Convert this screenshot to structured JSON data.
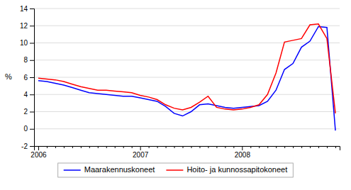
{
  "chart_data": {
    "type": "line",
    "categories": [
      "2006",
      null,
      null,
      null,
      null,
      null,
      null,
      null,
      null,
      null,
      null,
      null,
      "2007",
      null,
      null,
      null,
      null,
      null,
      null,
      null,
      null,
      null,
      null,
      null,
      "2008",
      null,
      null,
      null,
      null,
      null,
      null,
      null,
      null,
      null,
      null,
      null
    ],
    "series": [
      {
        "name": "Maarakennuskoneet",
        "color": "#0000FF",
        "values": [
          5.6,
          5.5,
          5.3,
          5.1,
          4.8,
          4.5,
          4.2,
          4.1,
          4.0,
          3.9,
          3.8,
          3.8,
          3.6,
          3.4,
          3.2,
          2.6,
          1.8,
          1.5,
          2.0,
          2.8,
          2.9,
          2.7,
          2.5,
          2.4,
          2.5,
          2.6,
          2.7,
          3.2,
          4.5,
          6.9,
          7.6,
          9.5,
          10.2,
          11.9,
          11.8,
          -0.2
        ]
      },
      {
        "name": "Hoito- ja kunnossapitokoneet",
        "color": "#FF0000",
        "values": [
          5.9,
          5.8,
          5.7,
          5.5,
          5.2,
          4.9,
          4.7,
          4.5,
          4.5,
          4.4,
          4.3,
          4.2,
          3.9,
          3.7,
          3.4,
          2.8,
          2.4,
          2.2,
          2.5,
          3.1,
          3.8,
          2.5,
          2.3,
          2.2,
          2.3,
          2.5,
          2.8,
          4.0,
          6.5,
          10.1,
          10.3,
          10.5,
          12.1,
          12.2,
          10.5,
          1.8
        ]
      }
    ],
    "ylabel": "%",
    "ylim": [
      -2,
      14
    ],
    "yticks": [
      -2,
      0,
      2,
      4,
      6,
      8,
      10,
      12,
      14
    ],
    "grid": true,
    "legend": "bottom"
  }
}
